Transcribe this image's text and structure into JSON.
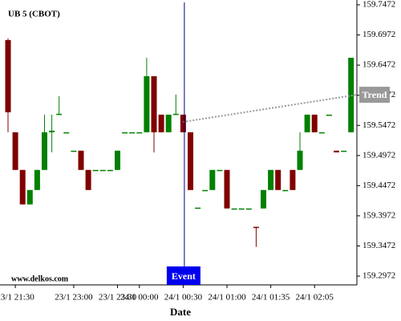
{
  "chart_data": {
    "type": "candlestick",
    "title": "UB 5 (CBOT)",
    "watermark": "www.delkos.com",
    "x_label": "Date",
    "categories": [
      null,
      "23/1 21:30",
      null,
      null,
      null,
      null,
      null,
      null,
      null,
      "23/1 23:00",
      null,
      null,
      null,
      null,
      null,
      "23/1 23:30",
      null,
      null,
      "24/1 00:00",
      null,
      null,
      null,
      null,
      null,
      "24/1 00:30",
      null,
      null,
      null,
      null,
      null,
      "24/1 01:00",
      null,
      null,
      null,
      null,
      null,
      "24/1 01:35",
      null,
      null,
      null,
      null,
      null,
      "24/1 02:05",
      null,
      null,
      null,
      null,
      null
    ],
    "open": [
      159.6887,
      159.5358,
      159.4733,
      159.4161,
      159.44,
      159.4733,
      159.5358,
      159.565,
      159.5358,
      159.5052,
      159.5052,
      159.4733,
      159.4733,
      159.4733,
      159.4733,
      159.4733,
      159.5358,
      159.5358,
      159.5358,
      159.5358,
      159.6288,
      159.565,
      159.5358,
      159.565,
      159.565,
      159.5358,
      159.4108,
      159.44,
      159.44,
      159.4733,
      159.4733,
      159.4094,
      159.4094,
      159.4094,
      159.3789,
      159.4094,
      159.44,
      159.4733,
      159.44,
      159.4733,
      159.4733,
      159.5358,
      159.565,
      159.5358,
      159.565,
      159.5052,
      159.5052,
      159.5358
    ],
    "high": [
      159.6914,
      159.5358,
      159.4733,
      159.44,
      159.4733,
      159.565,
      159.565,
      159.5956,
      159.5358,
      159.5052,
      159.5052,
      159.4733,
      159.4733,
      159.4733,
      159.4733,
      159.5052,
      159.5358,
      159.5358,
      159.5358,
      159.6594,
      159.6288,
      159.565,
      159.565,
      159.5983,
      159.565,
      159.5358,
      159.4108,
      159.44,
      159.4733,
      159.4733,
      159.4733,
      159.4094,
      159.4094,
      159.4094,
      159.3789,
      159.44,
      159.4733,
      159.4733,
      159.44,
      159.4733,
      159.5358,
      159.565,
      159.565,
      159.5358,
      159.565,
      159.5052,
      159.5052,
      159.6594
    ],
    "low": [
      159.5358,
      159.4733,
      159.4161,
      159.4161,
      159.44,
      159.4733,
      159.5025,
      159.565,
      159.5358,
      159.5052,
      159.4733,
      159.44,
      159.4733,
      159.4733,
      159.4733,
      159.4733,
      159.5358,
      159.5358,
      159.5358,
      159.5358,
      159.5025,
      159.5358,
      159.5358,
      159.565,
      159.5358,
      159.44,
      159.4108,
      159.44,
      159.44,
      159.4733,
      159.4094,
      159.4094,
      159.4094,
      159.4094,
      159.3456,
      159.4094,
      159.44,
      159.44,
      159.44,
      159.44,
      159.4733,
      159.5358,
      159.5358,
      159.5358,
      159.565,
      159.5025,
      159.5052,
      159.5358
    ],
    "close": [
      159.569,
      159.4733,
      159.4161,
      159.44,
      159.4733,
      159.5358,
      159.5384,
      159.5664,
      159.5358,
      159.5052,
      159.4733,
      159.44,
      159.4733,
      159.4733,
      159.4733,
      159.5052,
      159.5358,
      159.5358,
      159.5358,
      159.6288,
      159.5358,
      159.5358,
      159.565,
      159.5664,
      159.5358,
      159.44,
      159.4108,
      159.44,
      159.4733,
      159.4733,
      159.4094,
      159.4094,
      159.4094,
      159.4094,
      159.3775,
      159.44,
      159.4733,
      159.44,
      159.44,
      159.44,
      159.5052,
      159.565,
      159.5358,
      159.5358,
      159.565,
      159.5025,
      159.5052,
      159.6594
    ],
    "up_color": "#008000",
    "down_color": "#800000",
    "ylim": [
      159.2826,
      159.7552
    ],
    "yticks": [
      159.2972,
      159.3472,
      159.3972,
      159.4472,
      159.4972,
      159.5472,
      159.5972,
      159.6472,
      159.6972,
      159.7472
    ],
    "event": {
      "label": "Event",
      "index": 24,
      "color": "#0000ee"
    },
    "trend": {
      "label": "Trend",
      "values": [
        159.553,
        159.598
      ],
      "color": "#999999"
    }
  }
}
